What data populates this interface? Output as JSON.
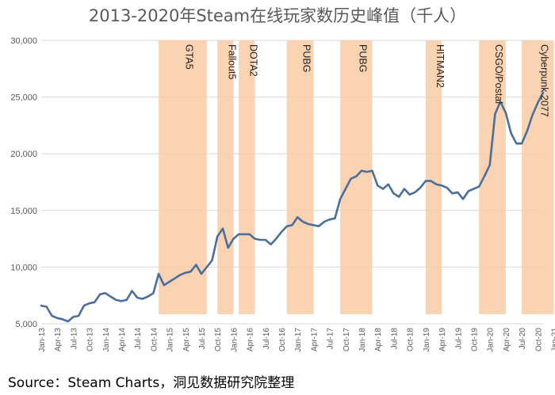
{
  "title": "2013-2020年Steam在线玩家数历史峰值（千人）",
  "source": "Source：Steam Charts，洞见数据研究院整理",
  "colors": {
    "line": "#4a6f9a",
    "band": "#f9cba6",
    "grid": "#d9d9d9",
    "axis_text": "#595959"
  },
  "chart_data": {
    "type": "line",
    "title": "2013-2020年Steam在线玩家数历史峰值（千人）",
    "xlabel": "",
    "ylabel": "",
    "ylim": [
      5000,
      30000
    ],
    "yticks": [
      5000,
      10000,
      15000,
      20000,
      25000,
      30000
    ],
    "ytick_labels": [
      "5,000",
      "10,000",
      "15,000",
      "20,000",
      "25,000",
      "30,000"
    ],
    "grid": true,
    "x_tick_labels": [
      "Jan-13",
      "Apr-13",
      "Jul-13",
      "Oct-13",
      "Jan-14",
      "Apr-14",
      "Jul-14",
      "Oct-14",
      "Jan-15",
      "Apr-15",
      "Jul-15",
      "Oct-15",
      "Jan-16",
      "Apr-16",
      "Jul-16",
      "Oct-16",
      "Jan-17",
      "Apr-17",
      "Jul-17",
      "Oct-17",
      "Jan-18",
      "Apr-18",
      "Jul-18",
      "Oct-18",
      "Jan-19",
      "Apr-19",
      "Jul-19",
      "Oct-19",
      "Jan-20",
      "Apr-20",
      "Jul-20",
      "Oct-20",
      "Jan-21"
    ],
    "series": [
      {
        "values": [
          6600,
          6500,
          5700,
          5500,
          5400,
          5200,
          5600,
          5700,
          6600,
          6800,
          6900,
          7600,
          7700,
          7400,
          7100,
          7000,
          7100,
          7900,
          7300,
          7200,
          7400,
          7700,
          9400,
          8400,
          8700,
          9000,
          9300,
          9500,
          9600,
          10200,
          9400,
          10000,
          10600,
          12700,
          13400,
          11700,
          12500,
          12900,
          12900,
          12900,
          12500,
          12400,
          12400,
          12000,
          12500,
          13100,
          13600,
          13700,
          14400,
          14000,
          13800,
          13700,
          13600,
          14000,
          14200,
          14300,
          16000,
          16900,
          17800,
          18000,
          18500,
          18400,
          18500,
          17200,
          16900,
          17300,
          16500,
          16200,
          16900,
          16400,
          16600,
          17000,
          17600,
          17600,
          17300,
          17200,
          17000,
          16500,
          16600,
          16000,
          16700,
          16900,
          17100,
          18000,
          19000,
          23500,
          24600,
          23600,
          21800,
          20900,
          20900,
          22000,
          23400,
          24500,
          25400
        ]
      }
    ],
    "events": [
      {
        "label": "GTA5",
        "start": 22,
        "end": 31
      },
      {
        "label": "Fallout5",
        "start": 33,
        "end": 36
      },
      {
        "label": "DOTA2",
        "start": 37,
        "end": 40
      },
      {
        "label": "PUBG",
        "start": 46,
        "end": 51
      },
      {
        "label": "PUBG",
        "start": 56,
        "end": 62
      },
      {
        "label": "HITMAN2",
        "start": 72,
        "end": 75
      },
      {
        "label": "CSGO/Postal",
        "start": 82,
        "end": 87
      },
      {
        "label": "Cyberpunk 2077",
        "start": 90,
        "end": 96
      }
    ]
  }
}
